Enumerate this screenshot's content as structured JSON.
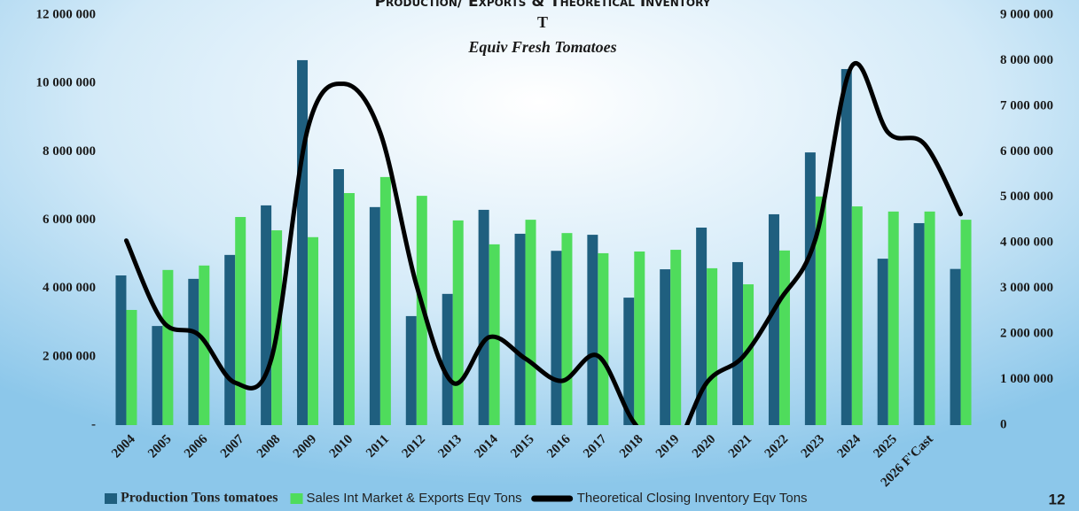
{
  "chart_data": {
    "type": "bar",
    "title": "Production/ Exports & Theoretical Inventory",
    "title_cont": "T",
    "subtitle": "Equiv Fresh Tomatoes",
    "page_number": "12",
    "categories": [
      "2004",
      "2005",
      "2006",
      "2007",
      "2008",
      "2009",
      "2010",
      "2011",
      "2012",
      "2013",
      "2014",
      "2015",
      "2016",
      "2017",
      "2018",
      "2019",
      "2020",
      "2021",
      "2022",
      "2023",
      "2024",
      "2025",
      "2026 F'Cast",
      null
    ],
    "series": [
      {
        "name": "Production  Tons tomatoes",
        "color": "#1f5f7f",
        "values": [
          4380000,
          2900000,
          4280000,
          4980000,
          6430000,
          10680000,
          7490000,
          6380000,
          3190000,
          3840000,
          6300000,
          5600000,
          5100000,
          5570000,
          3730000,
          4560000,
          5780000,
          4770000,
          6170000,
          7980000,
          10420000,
          4870000,
          5910000,
          4570000
        ]
      },
      {
        "name": "Sales Int Market & Exports Eqv Tons",
        "color": "#4fdc5c",
        "values": [
          3370000,
          4540000,
          4670000,
          6090000,
          5700000,
          5500000,
          6790000,
          7260000,
          6710000,
          5990000,
          5290000,
          6010000,
          5620000,
          5030000,
          5080000,
          5130000,
          4590000,
          4120000,
          5110000,
          6690000,
          6400000,
          6250000,
          6250000,
          6010000
        ]
      },
      {
        "name": "Theoretical Closing Inventory Eqv Tons",
        "color": "#000000",
        "type": "line",
        "axis": "y2",
        "values": [
          4050000,
          2280000,
          1980000,
          930000,
          1460000,
          6500000,
          7490000,
          6420000,
          3070000,
          930000,
          1930000,
          1460000,
          970000,
          1520000,
          50000,
          -600000,
          930000,
          1500000,
          2720000,
          4090000,
          7880000,
          6420000,
          6170000,
          4630000
        ]
      }
    ],
    "ylim": [
      0,
      12000000
    ],
    "yticks": [
      {
        "value": 0,
        "label": "-"
      },
      {
        "value": 2000000,
        "label": "2 000 000"
      },
      {
        "value": 4000000,
        "label": "4 000 000"
      },
      {
        "value": 6000000,
        "label": "6 000 000"
      },
      {
        "value": 8000000,
        "label": "8 000 000"
      },
      {
        "value": 10000000,
        "label": "10 000 000"
      },
      {
        "value": 12000000,
        "label": "12 000 000"
      }
    ],
    "y2lim": [
      0,
      9000000
    ],
    "y2ticks": [
      0,
      {
        "value": 1000000,
        "label": "1 000 000"
      },
      {
        "value": 2000000,
        "label": "2 000 000"
      },
      {
        "value": 3000000,
        "label": "3 000 000"
      },
      {
        "value": 4000000,
        "label": "4 000 000"
      },
      {
        "value": 5000000,
        "label": "5 000 000"
      },
      {
        "value": 6000000,
        "label": "6 000 000"
      },
      {
        "value": 7000000,
        "label": "7 000 000"
      },
      {
        "value": 8000000,
        "label": "8 000 000"
      },
      {
        "value": 9000000,
        "label": "9 000 000"
      }
    ],
    "legend": "bottom"
  }
}
